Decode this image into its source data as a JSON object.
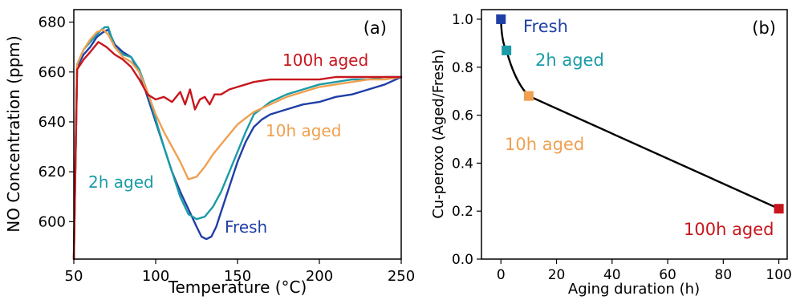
{
  "chart_data": [
    {
      "type": "line",
      "panel_label": "(a)",
      "title": "",
      "xlabel": "Temperature (°C)",
      "ylabel": "NO Concentration (ppm)",
      "xlim": [
        50,
        250
      ],
      "ylim": [
        585,
        685
      ],
      "xticks": [
        50,
        100,
        150,
        200,
        250
      ],
      "yticks": [
        600,
        620,
        640,
        660,
        680
      ],
      "grid": false,
      "legend": "none (direct labels)",
      "series": [
        {
          "name": "Fresh",
          "color": "#1f3fa6",
          "x": [
            50,
            52,
            56,
            60,
            64,
            68,
            71,
            75,
            80,
            85,
            90,
            95,
            100,
            105,
            110,
            115,
            120,
            125,
            128,
            131,
            134,
            137,
            140,
            145,
            150,
            155,
            160,
            165,
            170,
            180,
            190,
            200,
            210,
            220,
            230,
            240,
            250
          ],
          "y": [
            585,
            662,
            667,
            670,
            674,
            676,
            677,
            671,
            668,
            666,
            660,
            650,
            640,
            630,
            620,
            612,
            605,
            598,
            594,
            593,
            594,
            598,
            604,
            614,
            624,
            632,
            638,
            641,
            643,
            645,
            647,
            648,
            650,
            651,
            653,
            655,
            658
          ]
        },
        {
          "name": "2h aged",
          "color": "#1a9ba6",
          "x": [
            50,
            52,
            56,
            60,
            64,
            67,
            69,
            71,
            73,
            75,
            80,
            85,
            90,
            95,
            100,
            105,
            110,
            115,
            120,
            125,
            130,
            135,
            140,
            145,
            150,
            155,
            160,
            170,
            180,
            190,
            200,
            210,
            220,
            230,
            240,
            250
          ],
          "y": [
            585,
            663,
            669,
            672,
            675,
            677,
            678,
            678,
            674,
            670,
            667,
            666,
            661,
            652,
            641,
            630,
            620,
            610,
            603,
            601,
            602,
            606,
            612,
            620,
            628,
            636,
            643,
            648,
            651,
            653,
            655,
            656,
            657,
            657,
            658,
            658
          ]
        },
        {
          "name": "10h aged",
          "color": "#f0a050",
          "x": [
            50,
            52,
            56,
            60,
            64,
            68,
            71,
            75,
            80,
            85,
            90,
            95,
            100,
            105,
            110,
            115,
            120,
            125,
            130,
            135,
            140,
            145,
            150,
            160,
            170,
            180,
            190,
            200,
            210,
            220,
            230,
            240,
            250
          ],
          "y": [
            585,
            663,
            669,
            673,
            676,
            677,
            675,
            670,
            666,
            664,
            660,
            652,
            643,
            636,
            630,
            624,
            617,
            618,
            622,
            627,
            631,
            635,
            639,
            644,
            647,
            650,
            652,
            654,
            655,
            656,
            657,
            657,
            658
          ]
        },
        {
          "name": "100h aged",
          "color": "#c8161d",
          "x": [
            50,
            52,
            56,
            60,
            65,
            70,
            75,
            80,
            85,
            90,
            95,
            100,
            105,
            110,
            115,
            118,
            121,
            124,
            127,
            130,
            133,
            136,
            140,
            145,
            150,
            155,
            160,
            170,
            180,
            190,
            200,
            210,
            220,
            230,
            240,
            250
          ],
          "y": [
            585,
            661,
            665,
            668,
            672,
            670,
            667,
            665,
            662,
            657,
            651,
            649,
            650,
            648,
            652,
            647,
            653,
            645,
            649,
            650,
            647,
            651,
            651,
            653,
            654,
            655,
            656,
            657,
            657,
            657,
            657,
            658,
            658,
            658,
            658,
            658
          ]
        }
      ],
      "annotations": [
        {
          "text": "100h aged",
          "color": "#c8161d"
        },
        {
          "text": "10h aged",
          "color": "#f0a050"
        },
        {
          "text": "2h aged",
          "color": "#1a9ba6"
        },
        {
          "text": "Fresh",
          "color": "#1f3fa6"
        }
      ]
    },
    {
      "type": "line",
      "panel_label": "(b)",
      "title": "",
      "xlabel": "Aging duration (h)",
      "ylabel": "Cu-peroxo (Aged/Fresh)",
      "xlim": [
        -7,
        103
      ],
      "ylim": [
        0.0,
        1.04
      ],
      "xticks": [
        0,
        20,
        40,
        60,
        80,
        100
      ],
      "yticks": [
        0.0,
        0.2,
        0.4,
        0.6,
        0.8,
        1.0
      ],
      "grid": false,
      "legend": "none (direct labels)",
      "line_color": "#000000",
      "points": [
        {
          "label": "Fresh",
          "x": 0,
          "y": 1.0,
          "color": "#1f3fa6"
        },
        {
          "label": "2h aged",
          "x": 2,
          "y": 0.87,
          "color": "#1a9ba6"
        },
        {
          "label": "10h aged",
          "x": 10,
          "y": 0.68,
          "color": "#f0a050"
        },
        {
          "label": "100h aged",
          "x": 100,
          "y": 0.21,
          "color": "#c8161d"
        }
      ]
    }
  ]
}
